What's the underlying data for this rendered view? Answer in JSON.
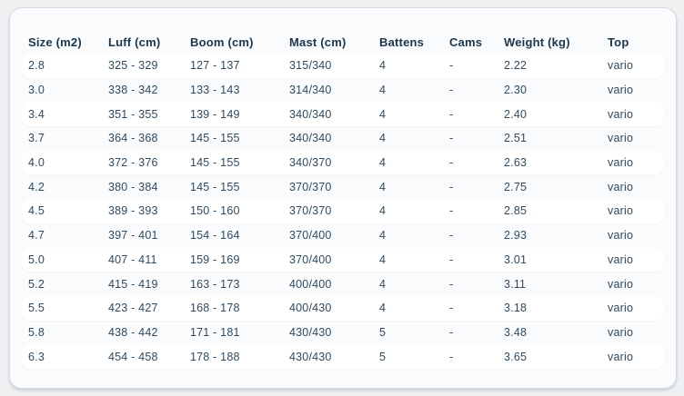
{
  "table": {
    "columns": [
      "Size (m2)",
      "Luff (cm)",
      "Boom (cm)",
      "Mast (cm)",
      "Battens",
      "Cams",
      "Weight (kg)",
      "Top"
    ],
    "rows": [
      [
        "2.8",
        "325 - 329",
        "127 - 137",
        "315/340",
        "4",
        "-",
        "2.22",
        "vario"
      ],
      [
        "3.0",
        "338 - 342",
        "133 - 143",
        "314/340",
        "4",
        "-",
        "2.30",
        "vario"
      ],
      [
        "3.4",
        "351 - 355",
        "139 - 149",
        "340/340",
        "4",
        "-",
        "2.40",
        "vario"
      ],
      [
        "3.7",
        "364 - 368",
        "145 - 155",
        "340/340",
        "4",
        "-",
        "2.51",
        "vario"
      ],
      [
        "4.0",
        "372 - 376",
        "145 - 155",
        "340/370",
        "4",
        "-",
        "2.63",
        "vario"
      ],
      [
        "4.2",
        "380 - 384",
        "145 - 155",
        "370/370",
        "4",
        "-",
        "2.75",
        "vario"
      ],
      [
        "4.5",
        "389 - 393",
        "150 - 160",
        "370/370",
        "4",
        "-",
        "2.85",
        "vario"
      ],
      [
        "4.7",
        "397 - 401",
        "154 - 164",
        "370/400",
        "4",
        "-",
        "2.93",
        "vario"
      ],
      [
        "5.0",
        "407 - 411",
        "159 - 169",
        "370/400",
        "4",
        "-",
        "3.01",
        "vario"
      ],
      [
        "5.2",
        "415 - 419",
        "163 - 173",
        "400/400",
        "4",
        "-",
        "3.11",
        "vario"
      ],
      [
        "5.5",
        "423 - 427",
        "168 - 178",
        "400/430",
        "4",
        "-",
        "3.18",
        "vario"
      ],
      [
        "5.8",
        "438 - 442",
        "171 - 181",
        "430/430",
        "5",
        "-",
        "3.48",
        "vario"
      ],
      [
        "6.3",
        "454 - 458",
        "178 - 188",
        "430/430",
        "5",
        "-",
        "3.65",
        "vario"
      ]
    ]
  },
  "colors": {
    "page_bg": "#eef0f2",
    "card_bg": "#fafbfc",
    "card_border": "#d7dbdf",
    "row_pill_bg": "#ffffff",
    "header_text": "#1a3750",
    "body_text": "#2f4a60"
  }
}
